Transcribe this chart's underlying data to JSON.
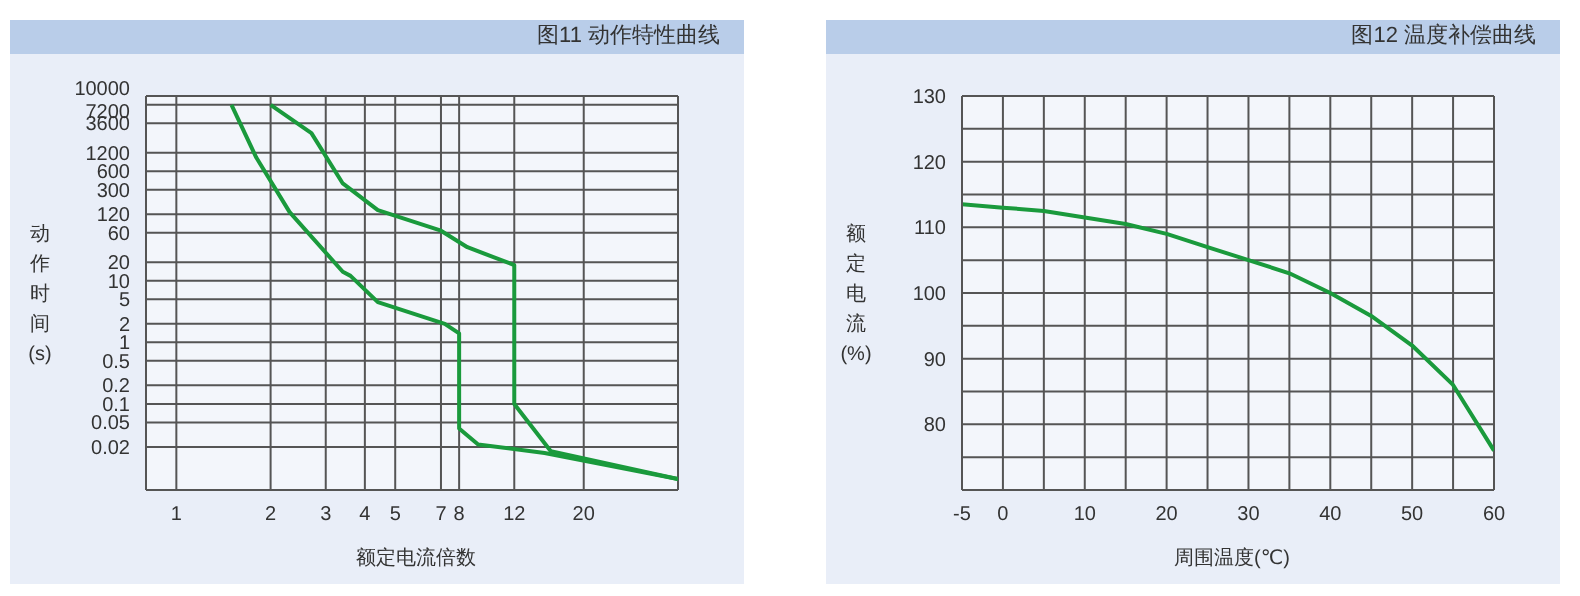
{
  "chart_data": [
    {
      "type": "line",
      "title": "图11 动作特性曲线",
      "xlabel": "额定电流倍数",
      "ylabel": "动作时间(s)",
      "log": "xy",
      "xlim": [
        0.8,
        40
      ],
      "xticks": [
        1,
        2,
        3,
        4,
        5,
        7,
        8,
        12,
        20
      ],
      "ylim": [
        0.004,
        10000
      ],
      "yticks": [
        0.02,
        0.05,
        0.1,
        0.2,
        0.5,
        1,
        2,
        5,
        10,
        20,
        60,
        120,
        300,
        600,
        1200,
        3600,
        7200,
        10000
      ],
      "grid": true,
      "marker": "none",
      "line_style": "solid",
      "series": [
        {
          "color": "#1a9a3c",
          "x": [
            1.5,
            1.8,
            2.3,
            3.4,
            3.6,
            4.4,
            7.2,
            8,
            8,
            9.2,
            15,
            40
          ],
          "values": [
            7200,
            1000,
            130,
            14,
            12,
            4.5,
            2,
            1.4,
            0.04,
            0.022,
            0.016,
            0.006
          ]
        },
        {
          "color": "#1a9a3c",
          "x": [
            2,
            2.7,
            3.4,
            4.4,
            7,
            8.5,
            12,
            12,
            15.7,
            40
          ],
          "values": [
            7200,
            2500,
            380,
            140,
            65,
            35,
            18,
            0.1,
            0.017,
            0.006
          ]
        }
      ]
    },
    {
      "type": "line",
      "title": "图12 温度补偿曲线",
      "xlabel": "周围温度(℃)",
      "ylabel": "额定电流(%)",
      "xlim": [
        -5,
        60
      ],
      "xticks": [
        -5,
        0,
        {
          "value": 5,
          "label": null
        },
        10,
        {
          "value": 15,
          "label": null
        },
        20,
        {
          "value": 25,
          "label": null
        },
        30,
        {
          "value": 35,
          "label": null
        },
        40,
        {
          "value": 45,
          "label": null
        },
        50,
        {
          "value": 55,
          "label": null
        },
        60
      ],
      "ylim": [
        70,
        130
      ],
      "yticks": [
        {
          "value": 75,
          "label": null
        },
        80,
        {
          "value": 85,
          "label": null
        },
        90,
        {
          "value": 95,
          "label": null
        },
        100,
        {
          "value": 105,
          "label": null
        },
        110,
        {
          "value": 115,
          "label": null
        },
        120,
        {
          "value": 125,
          "label": null
        },
        130
      ],
      "grid": true,
      "marker": "none",
      "line_style": "solid",
      "series": [
        {
          "color": "#1a9a3c",
          "x": [
            -5,
            0,
            5,
            10,
            15,
            20,
            25,
            30,
            35,
            40,
            45,
            50,
            55,
            57,
            60
          ],
          "values": [
            113.5,
            113,
            112.5,
            111.5,
            110.5,
            109,
            107,
            105,
            103,
            100,
            96.5,
            92,
            86,
            82,
            76
          ]
        }
      ]
    }
  ]
}
